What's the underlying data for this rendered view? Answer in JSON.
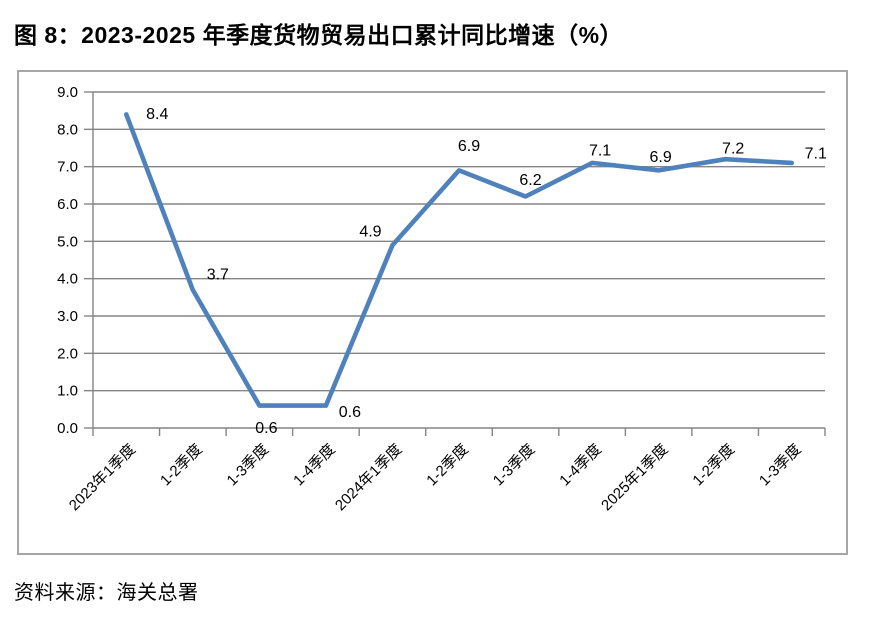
{
  "page": {
    "title": "图 8：2023-2025 年季度货物贸易出口累计同比增速（%）",
    "source": "资料来源：海关总署"
  },
  "colors": {
    "line": "#4F81BD",
    "grid": "#848484",
    "frame_border": "#A6A6A6",
    "text": "#000000"
  },
  "chart_data": {
    "type": "line",
    "title": "图 8：2023-2025 年季度货物贸易出口累计同比增速（%）",
    "source": "资料来源：海关总署",
    "categories": [
      "2023年1季度",
      "1-2季度",
      "1-3季度",
      "1-4季度",
      "2024年1季度",
      "1-2季度",
      "1-3季度",
      "1-4季度",
      "2025年1季度",
      "1-2季度",
      "1-3季度"
    ],
    "values": [
      8.4,
      3.7,
      0.6,
      0.6,
      4.9,
      6.9,
      6.2,
      7.1,
      6.9,
      7.2,
      7.1
    ],
    "data_labels": [
      "8.4",
      "3.7",
      "0.6",
      "0.6",
      "4.9",
      "6.9",
      "6.2",
      "7.1",
      "6.9",
      "7.2",
      "7.1"
    ],
    "ylim": [
      0,
      9
    ],
    "ytick_step": 1,
    "ytick_labels": [
      "0.0",
      "1.0",
      "2.0",
      "3.0",
      "4.0",
      "5.0",
      "6.0",
      "7.0",
      "8.0",
      "9.0"
    ],
    "xlabel": "",
    "ylabel": "",
    "grid": true,
    "legend": false,
    "x_labels_rotated_deg": 45
  }
}
